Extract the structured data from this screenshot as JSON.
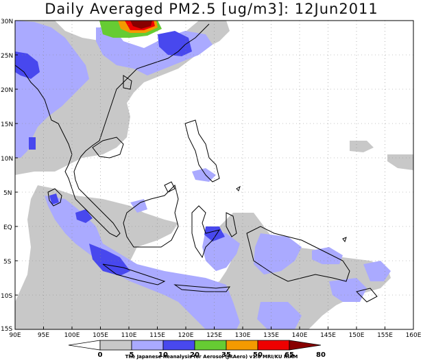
{
  "title": "Daily Averaged PM2.5 [ug/m3]: 12Jun2011",
  "credit": "The Japanese Reanalysis for Aerosol (JRAero) v1.0 MRI/KU RIAM",
  "latitude_labels": [
    "30N",
    "25N",
    "20N",
    "15N",
    "10N",
    "5N",
    "EQ",
    "5S",
    "10S",
    "15S"
  ],
  "longitude_labels": [
    "90E",
    "95E",
    "100E",
    "105E",
    "110E",
    "115E",
    "120E",
    "125E",
    "130E",
    "135E",
    "140E",
    "145E",
    "150E",
    "155E",
    "160E"
  ],
  "legend": {
    "thresholds": [
      "0",
      "5",
      "10",
      "20",
      "35",
      "50",
      "65",
      "80"
    ],
    "colors": [
      "#ffffff",
      "#c8c8c8",
      "#aaaaff",
      "#4848ee",
      "#66cc33",
      "#f49a00",
      "#ee0000",
      "#880000"
    ]
  },
  "colors": {
    "gray_band": "#c8c8c8",
    "light_blue_band": "#aaaaff",
    "blue_band": "#4848ee",
    "green_band": "#66cc33",
    "orange_band": "#f49a00",
    "red_band": "#ee0000",
    "darkred_band": "#880000"
  }
}
